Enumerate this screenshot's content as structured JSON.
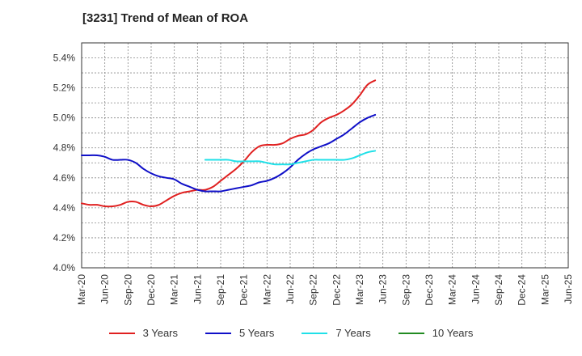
{
  "chart_data": {
    "type": "line",
    "title": "[3231]  Trend of Mean of ROA",
    "xlabel": "",
    "ylabel": "",
    "ylim": [
      4.0,
      5.5
    ],
    "y_ticks": [
      "4.0%",
      "4.2%",
      "4.4%",
      "4.6%",
      "4.8%",
      "5.0%",
      "5.2%",
      "5.4%"
    ],
    "x_ticks": [
      "Mar-20",
      "Jun-20",
      "Sep-20",
      "Dec-20",
      "Mar-21",
      "Jun-21",
      "Sep-21",
      "Dec-21",
      "Mar-22",
      "Jun-22",
      "Sep-22",
      "Dec-22",
      "Mar-23",
      "Jun-23",
      "Sep-23",
      "Dec-23",
      "Mar-24",
      "Jun-24",
      "Sep-24",
      "Dec-24",
      "Mar-25",
      "Jun-25"
    ],
    "grid": true,
    "legend_position": "bottom",
    "series": [
      {
        "name": "3 Years",
        "color": "#e02020",
        "values": [
          4.43,
          4.42,
          4.42,
          4.41,
          4.41,
          4.42,
          4.44,
          4.44,
          4.42,
          4.41,
          4.42,
          4.45,
          4.48,
          4.5,
          4.51,
          4.52,
          4.52,
          4.54,
          4.58,
          4.62,
          4.66,
          4.71,
          4.77,
          4.81,
          4.82,
          4.82,
          4.83,
          4.86,
          4.88,
          4.89,
          4.92,
          4.97,
          5.0,
          5.02,
          5.05,
          5.09,
          5.15,
          5.22,
          5.25
        ]
      },
      {
        "name": "5 Years",
        "color": "#1010c8",
        "values": [
          4.75,
          4.75,
          4.75,
          4.74,
          4.72,
          4.72,
          4.72,
          4.7,
          4.66,
          4.63,
          4.61,
          4.6,
          4.59,
          4.56,
          4.54,
          4.52,
          4.51,
          4.51,
          4.51,
          4.52,
          4.53,
          4.54,
          4.55,
          4.57,
          4.58,
          4.6,
          4.63,
          4.67,
          4.72,
          4.76,
          4.79,
          4.81,
          4.83,
          4.86,
          4.89,
          4.93,
          4.97,
          5.0,
          5.02
        ]
      },
      {
        "name": "7 Years",
        "color": "#20e0e8",
        "values": [
          null,
          null,
          null,
          null,
          null,
          null,
          null,
          null,
          null,
          null,
          null,
          null,
          null,
          null,
          null,
          null,
          4.72,
          4.72,
          4.72,
          4.72,
          4.71,
          4.71,
          4.71,
          4.71,
          4.7,
          4.69,
          4.69,
          4.69,
          4.7,
          4.71,
          4.72,
          4.72,
          4.72,
          4.72,
          4.72,
          4.73,
          4.75,
          4.77,
          4.78
        ]
      },
      {
        "name": "10 Years",
        "color": "#228b22",
        "values": []
      }
    ]
  }
}
